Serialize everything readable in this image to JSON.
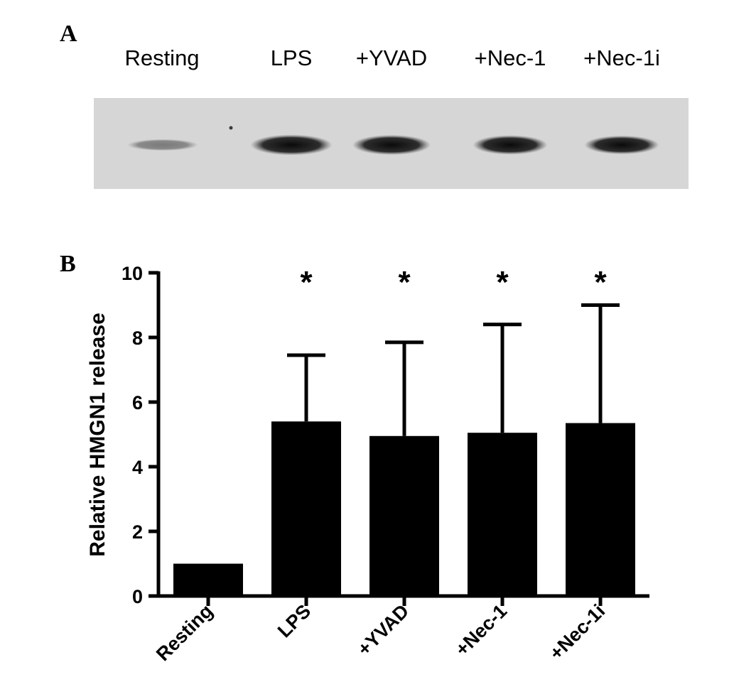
{
  "panels": {
    "a_label": "A",
    "b_label": "B"
  },
  "blot": {
    "lanes": [
      "Resting",
      "LPS",
      "+YVAD",
      "+Nec-1",
      "+Nec-1i"
    ],
    "band_intensity": [
      0.25,
      0.95,
      0.9,
      0.85,
      0.8
    ]
  },
  "chart_data": {
    "type": "bar",
    "categories": [
      "Resting",
      "LPS",
      "+YVAD",
      "+Nec-1",
      "+Nec-1i"
    ],
    "values": [
      1.0,
      5.4,
      4.95,
      5.05,
      5.35
    ],
    "errors_upper": [
      0,
      2.05,
      2.9,
      3.35,
      3.65
    ],
    "significance": [
      "",
      "*",
      "*",
      "*",
      "*"
    ],
    "title": "",
    "xlabel": "",
    "ylabel": "Relative HMGN1 release",
    "ylim": [
      0,
      10
    ],
    "yticks": [
      0,
      2,
      4,
      6,
      8,
      10
    ],
    "grid": false,
    "bar_color": "#000000"
  }
}
